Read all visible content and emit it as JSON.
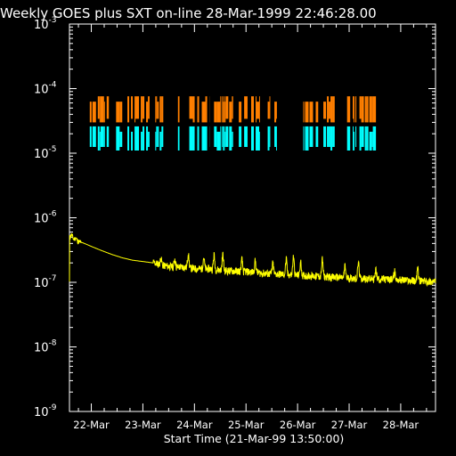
{
  "chart_data": {
    "type": "line",
    "title": "Weekly GOES plus SXT on-line 28-Mar-1999 22:46:28.00",
    "xlabel": "Start Time (21-Mar-99 13:50:00)",
    "ylabel": "",
    "y_scale": "log",
    "ylim": [
      1e-09,
      0.001
    ],
    "y_ticks": [
      {
        "base": "10",
        "exp": "-9",
        "value": 1e-09
      },
      {
        "base": "10",
        "exp": "-8",
        "value": 1e-08
      },
      {
        "base": "10",
        "exp": "-7",
        "value": 1e-07
      },
      {
        "base": "10",
        "exp": "-6",
        "value": 1e-06
      },
      {
        "base": "10",
        "exp": "-5",
        "value": 1e-05
      },
      {
        "base": "10",
        "exp": "-4",
        "value": 0.0001
      },
      {
        "base": "10",
        "exp": "-3",
        "value": 0.001
      }
    ],
    "x_unit": "days since 21-Mar-99 00:00",
    "xlim": [
      0.5764,
      7.675
    ],
    "x_ticks": [
      {
        "label": "22-Mar",
        "value": 1
      },
      {
        "label": "23-Mar",
        "value": 2
      },
      {
        "label": "24-Mar",
        "value": 3
      },
      {
        "label": "25-Mar",
        "value": 4
      },
      {
        "label": "26-Mar",
        "value": 5
      },
      {
        "label": "27-Mar",
        "value": 6
      },
      {
        "label": "28-Mar",
        "value": 7
      }
    ],
    "colors": {
      "flux": "#ffff00",
      "sxt_upper": "#ff7f00",
      "sxt_lower": "#00ffff",
      "axes": "#ffffff",
      "background": "#000000"
    },
    "series": [
      {
        "color": "#ffff00",
        "points": [
          [
            0.58,
            5e-07
          ],
          [
            0.62,
            5.5e-07
          ],
          [
            0.66,
            4.6e-07
          ],
          [
            0.7,
            4.9e-07
          ],
          [
            0.74,
            4.3e-07
          ],
          [
            0.8,
            4.2e-07
          ],
          [
            0.9,
            3.9e-07
          ],
          [
            1.0,
            3.6e-07
          ],
          [
            1.2,
            3.1e-07
          ],
          [
            1.4,
            2.7e-07
          ],
          [
            1.6,
            2.4e-07
          ],
          [
            1.8,
            2.2e-07
          ],
          [
            2.0,
            2.1e-07
          ],
          [
            2.2,
            2e-07
          ],
          [
            2.4,
            1.8e-07
          ],
          [
            2.6,
            1.7e-07
          ],
          [
            2.8,
            1.7e-07
          ],
          [
            3.0,
            1.6e-07
          ],
          [
            3.3,
            1.6e-07
          ],
          [
            3.6,
            1.5e-07
          ],
          [
            4.0,
            1.45e-07
          ],
          [
            4.4,
            1.35e-07
          ],
          [
            4.8,
            1.3e-07
          ],
          [
            5.2,
            1.25e-07
          ],
          [
            5.6,
            1.2e-07
          ],
          [
            6.0,
            1.15e-07
          ],
          [
            6.4,
            1.12e-07
          ],
          [
            6.8,
            1.1e-07
          ],
          [
            7.2,
            1.05e-07
          ],
          [
            7.675,
            1e-07
          ]
        ],
        "spikes": [
          [
            2.35,
            2.4e-07
          ],
          [
            2.62,
            2.3e-07
          ],
          [
            2.88,
            2.9e-07
          ],
          [
            3.18,
            2.5e-07
          ],
          [
            3.38,
            2.7e-07
          ],
          [
            3.55,
            2.8e-07
          ],
          [
            3.92,
            2.3e-07
          ],
          [
            4.18,
            2.2e-07
          ],
          [
            4.52,
            2e-07
          ],
          [
            4.78,
            2.3e-07
          ],
          [
            4.92,
            2.6e-07
          ],
          [
            5.06,
            2.1e-07
          ],
          [
            5.48,
            2.3e-07
          ],
          [
            5.92,
            1.8e-07
          ],
          [
            6.18,
            2.1e-07
          ],
          [
            6.52,
            1.6e-07
          ],
          [
            6.88,
            1.5e-07
          ],
          [
            7.33,
            1.7e-07
          ]
        ]
      }
    ],
    "sxt_coverage": {
      "upper_band_y": [
        3e-05,
        7.6e-05
      ],
      "lower_band_y": [
        1.1e-05,
        2.6e-05
      ],
      "intervals": [
        [
          0.97,
          1.34
        ],
        [
          1.48,
          1.6
        ],
        [
          1.7,
          2.13
        ],
        [
          2.24,
          2.43
        ],
        [
          2.68,
          2.71
        ],
        [
          2.9,
          3.3
        ],
        [
          3.38,
          3.75
        ],
        [
          3.86,
          4.03
        ],
        [
          4.1,
          4.27
        ],
        [
          4.42,
          4.47
        ],
        [
          4.55,
          4.6
        ],
        [
          5.11,
          5.4
        ],
        [
          5.5,
          5.72
        ],
        [
          5.96,
          6.02
        ],
        [
          6.07,
          6.14
        ],
        [
          6.2,
          6.52
        ]
      ]
    }
  }
}
